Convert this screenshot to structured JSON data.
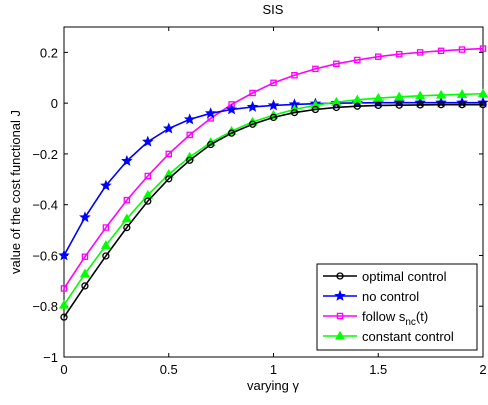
{
  "chart_data": {
    "type": "line",
    "title": "SIS",
    "xlabel": "varying γ",
    "ylabel": "value of the cost functional J",
    "xlim": [
      0,
      2
    ],
    "ylim": [
      -1,
      0.3
    ],
    "xticks": [
      0,
      0.5,
      1,
      1.5,
      2
    ],
    "xtick_labels": [
      "0",
      "0.5",
      "1",
      "1.5",
      "2"
    ],
    "yticks": [
      -1,
      -0.8,
      -0.6,
      -0.4,
      -0.2,
      0,
      0.2
    ],
    "ytick_labels": [
      "−1",
      "−0.8",
      "−0.6",
      "−0.4",
      "−0.2",
      "0",
      "0.2"
    ],
    "grid": false,
    "legend_position": "bottom-right",
    "x": [
      0,
      0.1,
      0.2,
      0.3,
      0.4,
      0.5,
      0.6,
      0.7,
      0.8,
      0.9,
      1.0,
      1.1,
      1.2,
      1.3,
      1.4,
      1.5,
      1.6,
      1.7,
      1.8,
      1.9,
      2.0
    ],
    "series": [
      {
        "name": "optimal control",
        "color": "#000000",
        "marker": "circle",
        "values": [
          -0.843,
          -0.72,
          -0.602,
          -0.49,
          -0.386,
          -0.298,
          -0.225,
          -0.163,
          -0.118,
          -0.083,
          -0.056,
          -0.037,
          -0.025,
          -0.017,
          -0.012,
          -0.009,
          -0.008,
          -0.007,
          -0.006,
          -0.006,
          -0.006
        ]
      },
      {
        "name": "no control",
        "color": "#0000ff",
        "marker": "star",
        "values": [
          -0.6,
          -0.45,
          -0.325,
          -0.228,
          -0.152,
          -0.1,
          -0.064,
          -0.04,
          -0.025,
          -0.015,
          -0.009,
          -0.005,
          -0.002,
          0.0,
          0.001,
          0.002,
          0.002,
          0.002,
          0.002,
          0.002,
          0.002
        ]
      },
      {
        "name": "follow s",
        "name_subscript": "nc",
        "name_suffix": "(t)",
        "color": "#ff00ff",
        "marker": "square",
        "values": [
          -0.73,
          -0.605,
          -0.49,
          -0.382,
          -0.287,
          -0.2,
          -0.125,
          -0.06,
          -0.005,
          0.04,
          0.08,
          0.11,
          0.135,
          0.155,
          0.17,
          0.183,
          0.193,
          0.2,
          0.206,
          0.211,
          0.215
        ]
      },
      {
        "name": "constant control",
        "color": "#00ff00",
        "marker": "triangle",
        "values": [
          -0.795,
          -0.672,
          -0.56,
          -0.455,
          -0.362,
          -0.28,
          -0.212,
          -0.155,
          -0.11,
          -0.074,
          -0.047,
          -0.025,
          -0.008,
          0.004,
          0.013,
          0.02,
          0.025,
          0.029,
          0.032,
          0.035,
          0.037
        ]
      }
    ]
  }
}
